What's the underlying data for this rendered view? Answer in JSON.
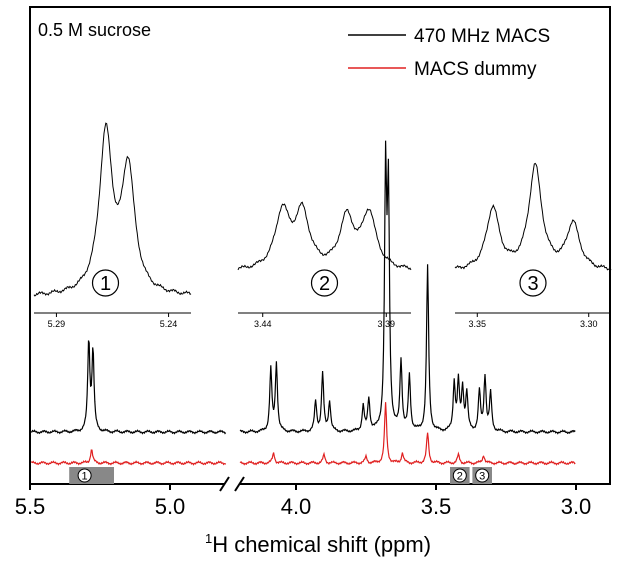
{
  "chart_data": {
    "type": "line",
    "title": "",
    "sample_label": "0.5 M sucrose",
    "xlabel_sup": "1",
    "xlabel_rest": "H chemical shift (ppm)",
    "ylabel": "",
    "x_reversed": true,
    "x_axis_break": [
      4.8,
      4.2
    ],
    "xlim": [
      5.5,
      3.0
    ],
    "x_ticks": [
      {
        "value": 5.5,
        "label": "5.5"
      },
      {
        "value": 5.0,
        "label": "5.0"
      },
      {
        "value": 4.0,
        "label": "4.0"
      },
      {
        "value": 3.5,
        "label": "3.5"
      },
      {
        "value": 3.0,
        "label": "3.0"
      }
    ],
    "legend_position": "top-right",
    "series": [
      {
        "name": "470 MHz MACS",
        "color": "#000000",
        "peaks": [
          {
            "ppm": 5.29,
            "height": 90
          },
          {
            "ppm": 5.275,
            "height": 80
          },
          {
            "ppm": 4.09,
            "height": 62
          },
          {
            "ppm": 4.07,
            "height": 68
          },
          {
            "ppm": 3.93,
            "height": 30
          },
          {
            "ppm": 3.905,
            "height": 58
          },
          {
            "ppm": 3.88,
            "height": 30
          },
          {
            "ppm": 3.76,
            "height": 25
          },
          {
            "ppm": 3.74,
            "height": 32
          },
          {
            "ppm": 3.68,
            "height": 250
          },
          {
            "ppm": 3.67,
            "height": 230
          },
          {
            "ppm": 3.625,
            "height": 70
          },
          {
            "ppm": 3.595,
            "height": 55
          },
          {
            "ppm": 3.53,
            "height": 165
          },
          {
            "ppm": 3.435,
            "height": 48
          },
          {
            "ppm": 3.42,
            "height": 48
          },
          {
            "ppm": 3.405,
            "height": 42
          },
          {
            "ppm": 3.39,
            "height": 38
          },
          {
            "ppm": 3.345,
            "height": 40
          },
          {
            "ppm": 3.325,
            "height": 55
          },
          {
            "ppm": 3.305,
            "height": 38
          }
        ]
      },
      {
        "name": "MACS dummy",
        "color": "#e02020",
        "peaks": [
          {
            "ppm": 5.28,
            "height": 14
          },
          {
            "ppm": 4.08,
            "height": 10
          },
          {
            "ppm": 3.9,
            "height": 8
          },
          {
            "ppm": 3.75,
            "height": 6
          },
          {
            "ppm": 3.68,
            "height": 60
          },
          {
            "ppm": 3.62,
            "height": 10
          },
          {
            "ppm": 3.53,
            "height": 30
          },
          {
            "ppm": 3.42,
            "height": 8
          },
          {
            "ppm": 3.33,
            "height": 8
          }
        ]
      }
    ],
    "markers": [
      {
        "label": "1",
        "from": 5.36,
        "to": 5.2
      },
      {
        "label": "2",
        "from": 3.45,
        "to": 3.38
      },
      {
        "label": "3",
        "from": 3.37,
        "to": 3.3
      }
    ],
    "insets": [
      {
        "label": "1",
        "xlim": [
          5.3,
          5.23
        ],
        "ticks": [
          {
            "value": 5.29,
            "label": "5.29"
          },
          {
            "value": 5.24,
            "label": "5.24"
          }
        ],
        "peaks": [
          {
            "ppm": 5.268,
            "height": 1.0
          },
          {
            "ppm": 5.258,
            "height": 0.78
          }
        ]
      },
      {
        "label": "2",
        "xlim": [
          3.45,
          3.38
        ],
        "ticks": [
          {
            "value": 3.44,
            "label": "3.44"
          },
          {
            "value": 3.39,
            "label": "3.39"
          }
        ],
        "peaks": [
          {
            "ppm": 3.432,
            "height": 0.7
          },
          {
            "ppm": 3.424,
            "height": 0.68
          },
          {
            "ppm": 3.406,
            "height": 0.62
          },
          {
            "ppm": 3.397,
            "height": 0.68
          }
        ]
      },
      {
        "label": "3",
        "xlim": [
          3.36,
          3.29
        ],
        "ticks": [
          {
            "value": 3.35,
            "label": "3.35"
          },
          {
            "value": 3.3,
            "label": "3.30"
          }
        ],
        "peaks": [
          {
            "ppm": 3.343,
            "height": 0.6
          },
          {
            "ppm": 3.324,
            "height": 1.0
          },
          {
            "ppm": 3.307,
            "height": 0.45
          }
        ]
      }
    ]
  }
}
